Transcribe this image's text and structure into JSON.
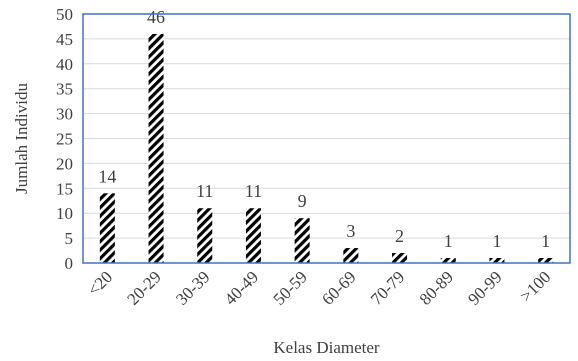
{
  "chart_data": {
    "type": "bar",
    "categories": [
      "<20",
      "20-29",
      "30-39",
      "40-49",
      "50-59",
      "60-69",
      "70-79",
      "80-89",
      "90-99",
      ">100"
    ],
    "values": [
      14,
      46,
      11,
      11,
      9,
      3,
      2,
      1,
      1,
      1
    ],
    "xlabel": "Kelas Diameter",
    "ylabel": "Jumlah Individu",
    "ylim": [
      0,
      50
    ],
    "yticks": [
      0,
      5,
      10,
      15,
      20,
      25,
      30,
      35,
      40,
      45,
      50
    ],
    "grid": true,
    "legend": "none",
    "data_labels": true,
    "bar_fill": "diagonal black-and-white hatch",
    "colors": {
      "bar": "#000000",
      "hatch_background": "#ffffff",
      "plot_border": "#4472c4",
      "grid": "#d9d9d9",
      "text": "#404040"
    }
  }
}
